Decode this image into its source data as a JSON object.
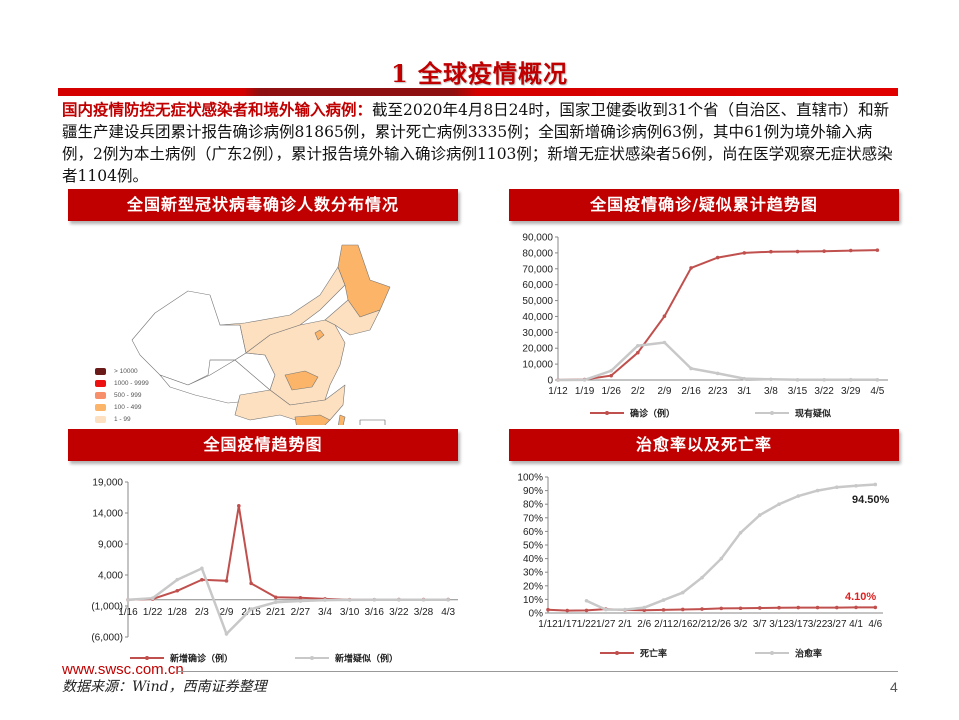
{
  "page": {
    "title": "1 全球疫情概况",
    "summary_highlight": "国内疫情防控无症状感染者和境外输入病例：",
    "summary_text": "截至2020年4月8日24时，国家卫健委收到31个省（自治区、直辖市）和新疆生产建设兵团累计报告确诊病例81865例，累计死亡病例3335例；全国新增确诊病例63例，其中61例为境外输入病例，2例为本土病例（广东2例），累计报告境外输入确诊病例1103例；新增无症状感染者56例，尚在医学观察无症状感染者1104例。",
    "page_number": "4"
  },
  "footer": {
    "url": "www.swsc.com.cn",
    "source": "数据来源：Wind，西南证券整理"
  },
  "colors": {
    "accent": "#c00000",
    "confirmed": "#c0504d",
    "suspected": "#c8c8c8"
  },
  "panels": {
    "map": {
      "title": "全国新型冠状病毒确诊人数分布情况",
      "legend": [
        {
          "label": "> 10000",
          "color": "#6b1a1a"
        },
        {
          "label": "1000 - 9999",
          "color": "#ee1111"
        },
        {
          "label": "500 - 999",
          "color": "#f7906a"
        },
        {
          "label": "100 - 499",
          "color": "#fbb468"
        },
        {
          "label": "1 - 99",
          "color": "#fde0c0"
        }
      ]
    },
    "cumulative": {
      "title": "全国疫情确诊/疑似累计趋势图"
    },
    "daily": {
      "title": "全国疫情趋势图"
    },
    "rates": {
      "title": "治愈率以及死亡率"
    }
  },
  "chart_data": [
    {
      "type": "line",
      "title": "全国疫情确诊/疑似累计趋势图",
      "categories": [
        "1/12",
        "1/19",
        "1/26",
        "2/2",
        "2/9",
        "2/16",
        "2/23",
        "3/1",
        "3/8",
        "3/15",
        "3/22",
        "3/29",
        "4/5"
      ],
      "series": [
        {
          "name": "确诊（例）",
          "values": [
            41,
            291,
            2744,
            17205,
            40171,
            70548,
            77041,
            79968,
            80735,
            80860,
            81093,
            81470,
            81740
          ]
        },
        {
          "name": "现有疑似",
          "values": [
            0,
            54,
            5794,
            21558,
            23589,
            7264,
            4148,
            851,
            458,
            111,
            115,
            172,
            100
          ]
        }
      ],
      "ylim": [
        0,
        90000
      ],
      "yticks": [
        "0",
        "10,000",
        "20,000",
        "30,000",
        "40,000",
        "50,000",
        "60,000",
        "70,000",
        "80,000",
        "90,000"
      ],
      "legend_position": "bottom"
    },
    {
      "type": "line",
      "title": "全国疫情趋势图",
      "categories": [
        "1/16",
        "1/22",
        "1/28",
        "2/3",
        "2/9",
        "2/15",
        "2/21",
        "2/27",
        "3/4",
        "3/10",
        "3/16",
        "3/22",
        "3/28",
        "4/3"
      ],
      "series": [
        {
          "name": "新增确诊（例）",
          "values": [
            4,
            131,
            1459,
            3235,
            3062,
            2641,
            397,
            327,
            139,
            24,
            21,
            46,
            45,
            31
          ]
        },
        {
          "name": "新增疑似（例）",
          "values": [
            0,
            257,
            3248,
            5072,
            -5500,
            -1500,
            -400,
            -200,
            -50,
            -20,
            0,
            0,
            0,
            0
          ]
        }
      ],
      "peak": {
        "date": "2/12",
        "value": 15152
      },
      "ylim": [
        -6000,
        19000
      ],
      "yticks": [
        "(6,000)",
        "(1,000)",
        "4,000",
        "9,000",
        "14,000",
        "19,000"
      ],
      "legend_position": "bottom"
    },
    {
      "type": "line",
      "title": "治愈率以及死亡率",
      "categories": [
        "1/12",
        "1/17",
        "1/22",
        "1/27",
        "2/1",
        "2/6",
        "2/11",
        "2/16",
        "2/21",
        "2/26",
        "3/2",
        "3/7",
        "3/12",
        "3/17",
        "3/22",
        "3/27",
        "4/1",
        "4/6"
      ],
      "series": [
        {
          "name": "死亡率",
          "values": [
            2.4,
            1.8,
            1.9,
            2.9,
            2.2,
            2.0,
            2.3,
            2.6,
            2.9,
            3.4,
            3.5,
            3.7,
            3.9,
            4.0,
            4.0,
            4.0,
            4.1,
            4.1
          ]
        },
        {
          "name": "治愈率",
          "values": [
            null,
            null,
            9.0,
            2.5,
            2.5,
            4.0,
            9.5,
            15.0,
            26.0,
            40.0,
            59.0,
            72.0,
            80.0,
            86.0,
            90.0,
            92.5,
            93.5,
            94.5
          ]
        }
      ],
      "annotations": [
        "94.50%",
        "4.10%"
      ],
      "ylim": [
        0,
        100
      ],
      "yticks": [
        "0%",
        "10%",
        "20%",
        "30%",
        "40%",
        "50%",
        "60%",
        "70%",
        "80%",
        "90%",
        "100%"
      ],
      "legend_position": "bottom"
    }
  ]
}
